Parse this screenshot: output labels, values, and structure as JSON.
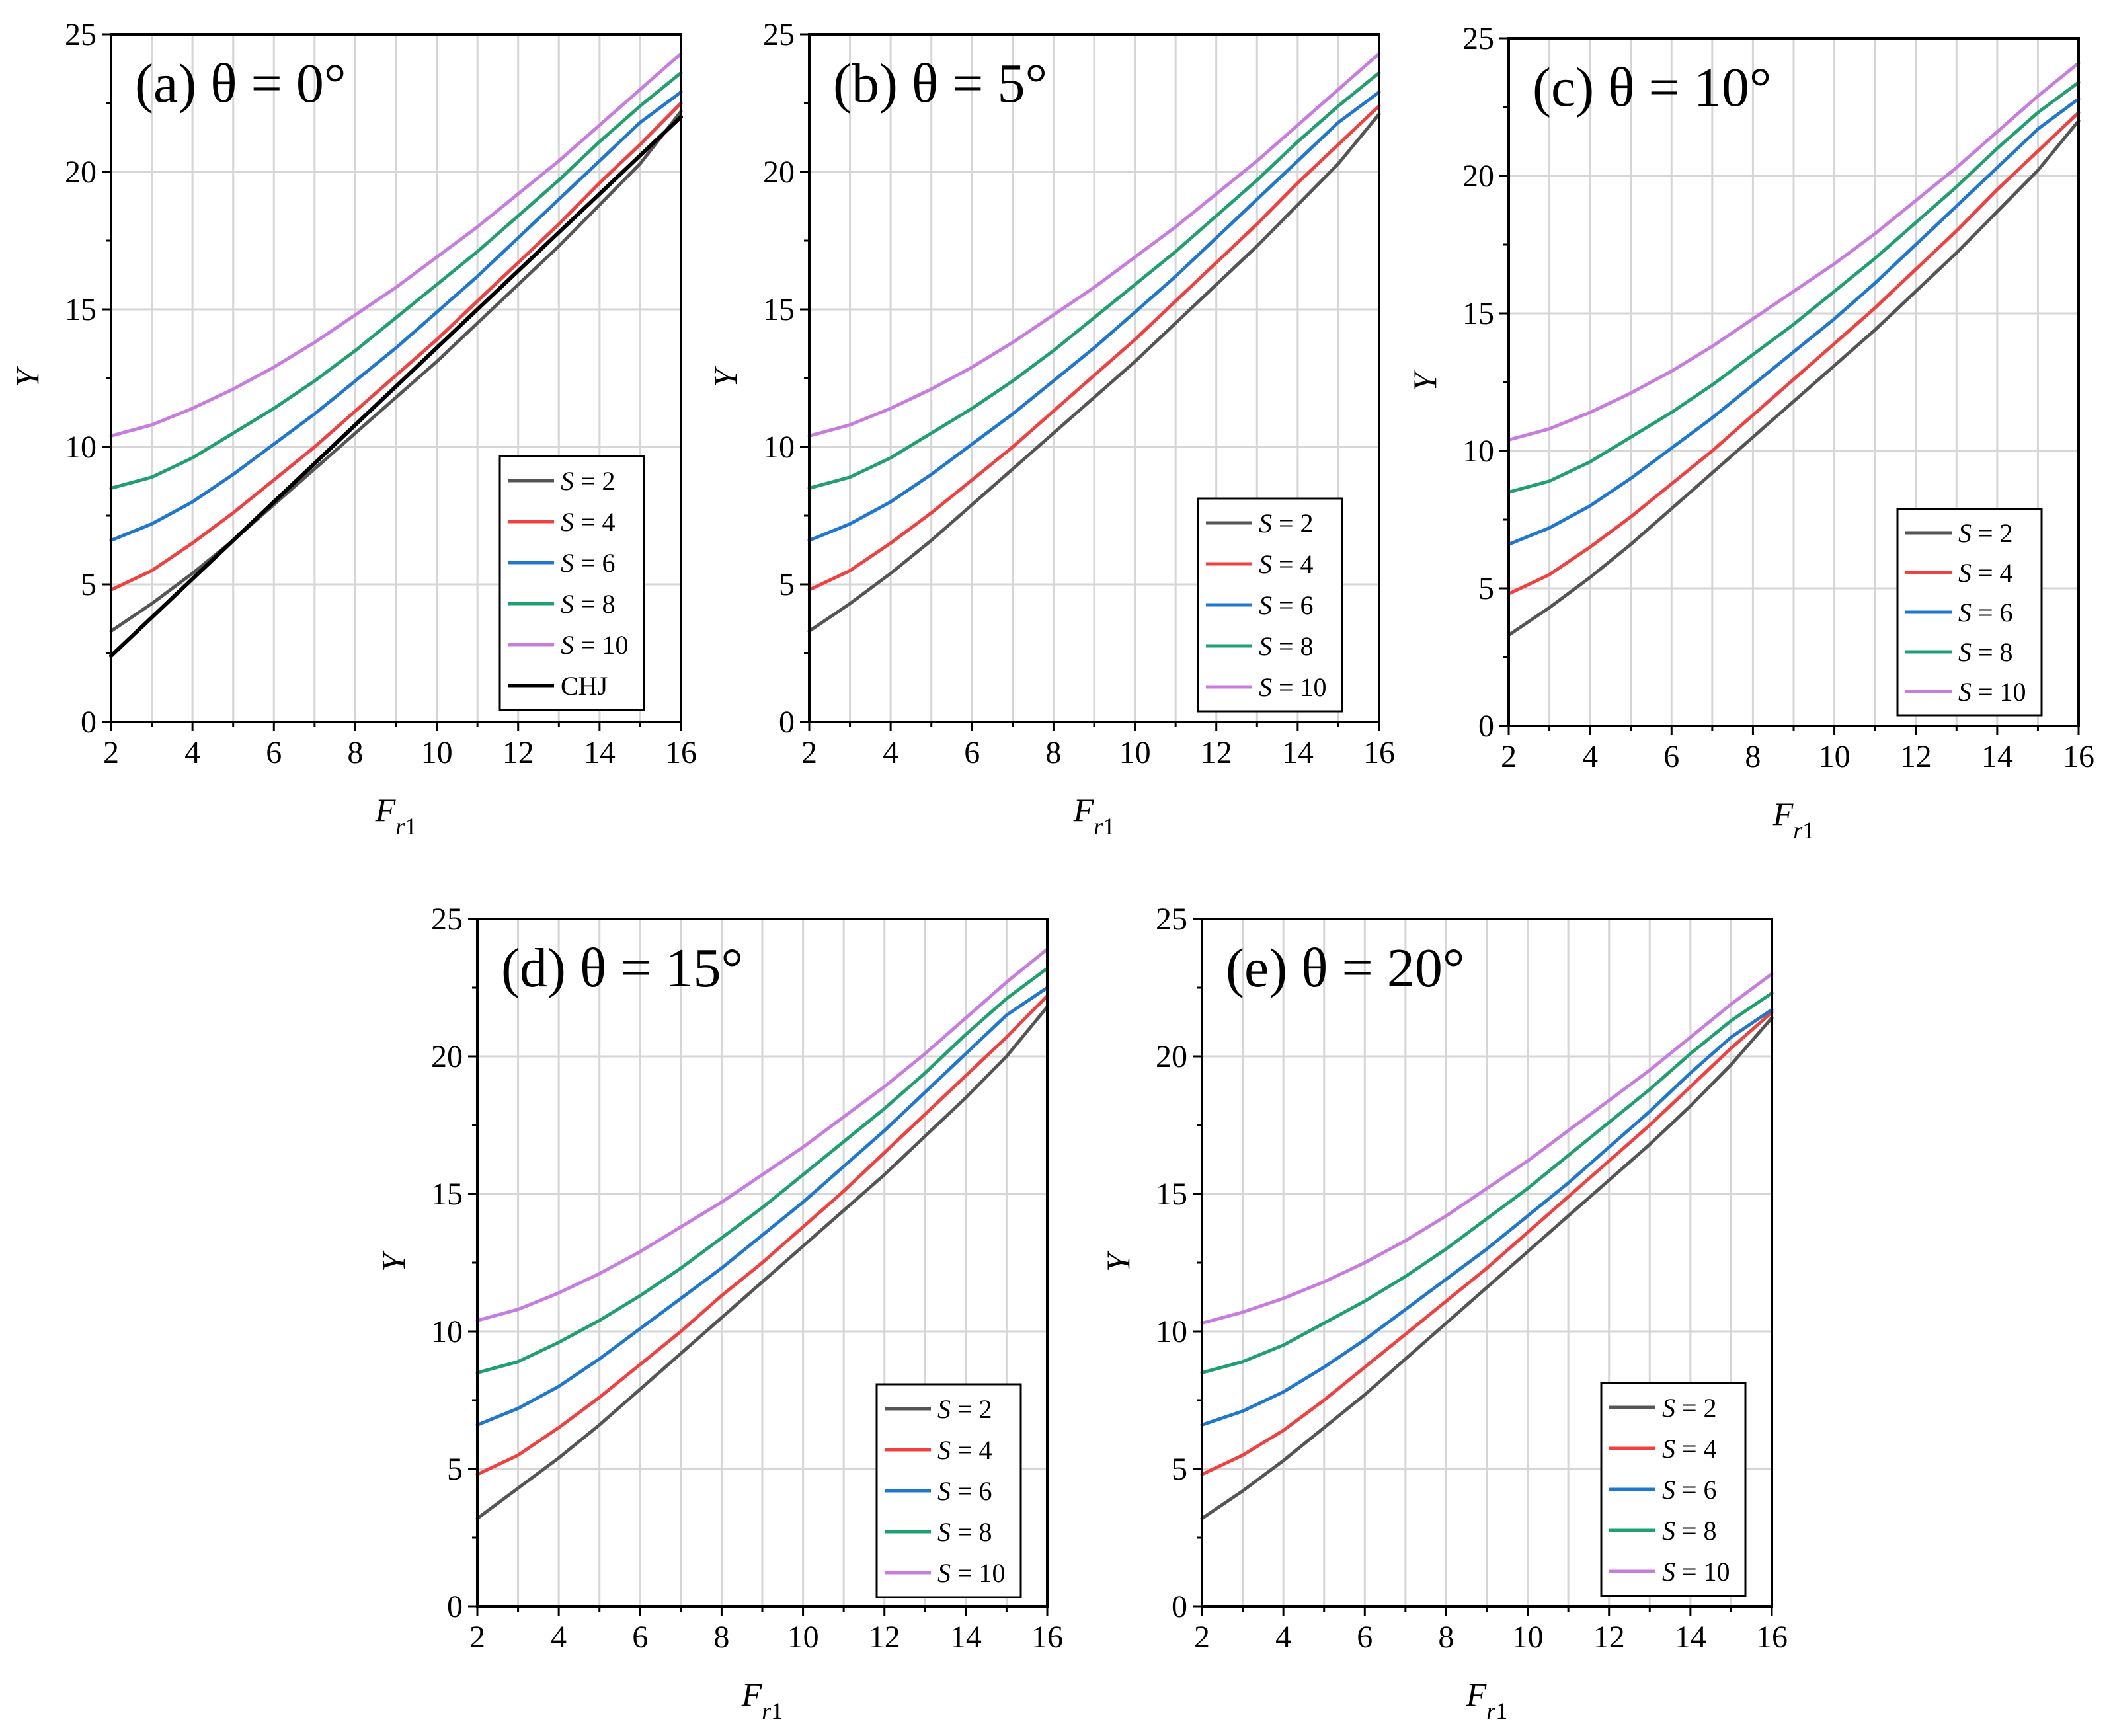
{
  "chart_data": [
    {
      "type": "line",
      "panel": "a",
      "title": "(a)  θ = 0°",
      "xlabel": "F_r1",
      "ylabel": "Y",
      "xlim": [
        2,
        16
      ],
      "ylim": [
        0,
        25
      ],
      "xticks": [
        2,
        4,
        6,
        8,
        10,
        12,
        14,
        16
      ],
      "yticks": [
        0,
        5,
        10,
        15,
        20,
        25
      ],
      "grid": true,
      "legend_position": "lower-right",
      "x": [
        2,
        3,
        4,
        5,
        6,
        7,
        8,
        9,
        10,
        11,
        12,
        13,
        14,
        15,
        16
      ],
      "series": [
        {
          "name": "S = 2",
          "color": "#555555",
          "values": [
            3.3,
            4.3,
            5.4,
            6.6,
            7.9,
            9.2,
            10.5,
            11.8,
            13.1,
            14.5,
            15.9,
            17.3,
            18.8,
            20.3,
            22.2
          ]
        },
        {
          "name": "S = 4",
          "color": "#f04040",
          "values": [
            4.8,
            5.5,
            6.5,
            7.6,
            8.8,
            10.0,
            11.3,
            12.6,
            13.9,
            15.3,
            16.7,
            18.1,
            19.6,
            21.0,
            22.5
          ]
        },
        {
          "name": "S = 6",
          "color": "#1f77d0",
          "values": [
            6.6,
            7.2,
            8.0,
            9.0,
            10.1,
            11.2,
            12.4,
            13.6,
            14.9,
            16.2,
            17.6,
            19.0,
            20.4,
            21.8,
            22.9
          ]
        },
        {
          "name": "S = 8",
          "color": "#20a070",
          "values": [
            8.5,
            8.9,
            9.6,
            10.5,
            11.4,
            12.4,
            13.5,
            14.7,
            15.9,
            17.1,
            18.4,
            19.7,
            21.1,
            22.4,
            23.6
          ]
        },
        {
          "name": "S = 10",
          "color": "#c77de0",
          "values": [
            10.4,
            10.8,
            11.4,
            12.1,
            12.9,
            13.8,
            14.8,
            15.8,
            16.9,
            18.0,
            19.2,
            20.4,
            21.7,
            23.0,
            24.3
          ]
        },
        {
          "name": "CHJ",
          "color": "#000000",
          "values": [
            2.4,
            3.8,
            5.2,
            6.6,
            8.0,
            9.4,
            10.8,
            12.2,
            13.6,
            15.0,
            16.4,
            17.8,
            19.2,
            20.6,
            22.0
          ]
        }
      ]
    },
    {
      "type": "line",
      "panel": "b",
      "title": "(b)  θ = 5°",
      "xlabel": "F_r1",
      "ylabel": "Y",
      "xlim": [
        2,
        16
      ],
      "ylim": [
        0,
        25
      ],
      "xticks": [
        2,
        4,
        6,
        8,
        10,
        12,
        14,
        16
      ],
      "yticks": [
        0,
        5,
        10,
        15,
        20,
        25
      ],
      "grid": true,
      "legend_position": "lower-right",
      "x": [
        2,
        3,
        4,
        5,
        6,
        7,
        8,
        9,
        10,
        11,
        12,
        13,
        14,
        15,
        16
      ],
      "series": [
        {
          "name": "S = 2",
          "color": "#555555",
          "values": [
            3.3,
            4.3,
            5.4,
            6.6,
            7.9,
            9.2,
            10.5,
            11.8,
            13.1,
            14.5,
            15.9,
            17.3,
            18.8,
            20.3,
            22.1
          ]
        },
        {
          "name": "S = 4",
          "color": "#f04040",
          "values": [
            4.8,
            5.5,
            6.5,
            7.6,
            8.8,
            10.0,
            11.3,
            12.6,
            13.9,
            15.3,
            16.7,
            18.1,
            19.6,
            21.0,
            22.4
          ]
        },
        {
          "name": "S = 6",
          "color": "#1f77d0",
          "values": [
            6.6,
            7.2,
            8.0,
            9.0,
            10.1,
            11.2,
            12.4,
            13.6,
            14.9,
            16.2,
            17.6,
            19.0,
            20.4,
            21.8,
            22.9
          ]
        },
        {
          "name": "S = 8",
          "color": "#20a070",
          "values": [
            8.5,
            8.9,
            9.6,
            10.5,
            11.4,
            12.4,
            13.5,
            14.7,
            15.9,
            17.1,
            18.4,
            19.7,
            21.1,
            22.4,
            23.6
          ]
        },
        {
          "name": "S = 10",
          "color": "#c77de0",
          "values": [
            10.4,
            10.8,
            11.4,
            12.1,
            12.9,
            13.8,
            14.8,
            15.8,
            16.9,
            18.0,
            19.2,
            20.4,
            21.7,
            23.0,
            24.3
          ]
        }
      ]
    },
    {
      "type": "line",
      "panel": "c",
      "title": "(c)  θ = 10°",
      "xlabel": "F_r1",
      "ylabel": "Y",
      "xlim": [
        2,
        16
      ],
      "ylim": [
        0,
        25
      ],
      "xticks": [
        2,
        4,
        6,
        8,
        10,
        12,
        14,
        16
      ],
      "yticks": [
        0,
        5,
        10,
        15,
        20,
        25
      ],
      "grid": true,
      "legend_position": "lower-right",
      "x": [
        2,
        3,
        4,
        5,
        6,
        7,
        8,
        9,
        10,
        11,
        12,
        13,
        14,
        15,
        16
      ],
      "series": [
        {
          "name": "S = 2",
          "color": "#555555",
          "values": [
            3.3,
            4.3,
            5.4,
            6.6,
            7.9,
            9.2,
            10.5,
            11.8,
            13.1,
            14.4,
            15.8,
            17.2,
            18.7,
            20.2,
            22.0
          ]
        },
        {
          "name": "S = 4",
          "color": "#f04040",
          "values": [
            4.8,
            5.5,
            6.5,
            7.6,
            8.8,
            10.0,
            11.3,
            12.6,
            13.9,
            15.2,
            16.6,
            18.0,
            19.5,
            20.9,
            22.3
          ]
        },
        {
          "name": "S = 6",
          "color": "#1f77d0",
          "values": [
            6.6,
            7.2,
            8.0,
            9.0,
            10.1,
            11.2,
            12.4,
            13.6,
            14.8,
            16.1,
            17.5,
            18.9,
            20.3,
            21.7,
            22.8
          ]
        },
        {
          "name": "S = 8",
          "color": "#20a070",
          "values": [
            8.5,
            8.9,
            9.6,
            10.5,
            11.4,
            12.4,
            13.5,
            14.6,
            15.8,
            17.0,
            18.3,
            19.6,
            21.0,
            22.3,
            23.4
          ]
        },
        {
          "name": "S = 10",
          "color": "#c77de0",
          "values": [
            10.4,
            10.8,
            11.4,
            12.1,
            12.9,
            13.8,
            14.8,
            15.8,
            16.8,
            17.9,
            19.1,
            20.3,
            21.6,
            22.9,
            24.1
          ]
        }
      ]
    },
    {
      "type": "line",
      "panel": "d",
      "title": "(d)  θ = 15°",
      "xlabel": "F_r1",
      "ylabel": "Y",
      "xlim": [
        2,
        16
      ],
      "ylim": [
        0,
        25
      ],
      "xticks": [
        2,
        4,
        6,
        8,
        10,
        12,
        14,
        16
      ],
      "yticks": [
        0,
        5,
        10,
        15,
        20,
        25
      ],
      "grid": true,
      "legend_position": "lower-right",
      "x": [
        2,
        3,
        4,
        5,
        6,
        7,
        8,
        9,
        10,
        11,
        12,
        13,
        14,
        15,
        16
      ],
      "series": [
        {
          "name": "S = 2",
          "color": "#555555",
          "values": [
            3.2,
            4.3,
            5.4,
            6.6,
            7.9,
            9.2,
            10.5,
            11.8,
            13.1,
            14.4,
            15.7,
            17.1,
            18.5,
            20.0,
            21.8
          ]
        },
        {
          "name": "S = 4",
          "color": "#f04040",
          "values": [
            4.8,
            5.5,
            6.5,
            7.6,
            8.8,
            10.0,
            11.3,
            12.5,
            13.8,
            15.1,
            16.5,
            17.9,
            19.3,
            20.7,
            22.2
          ]
        },
        {
          "name": "S = 6",
          "color": "#1f77d0",
          "values": [
            6.6,
            7.2,
            8.0,
            9.0,
            10.1,
            11.2,
            12.3,
            13.5,
            14.7,
            16.0,
            17.3,
            18.7,
            20.1,
            21.5,
            22.5
          ]
        },
        {
          "name": "S = 8",
          "color": "#20a070",
          "values": [
            8.5,
            8.9,
            9.6,
            10.4,
            11.3,
            12.3,
            13.4,
            14.5,
            15.7,
            16.9,
            18.1,
            19.4,
            20.8,
            22.1,
            23.2
          ]
        },
        {
          "name": "S = 10",
          "color": "#c77de0",
          "values": [
            10.4,
            10.8,
            11.4,
            12.1,
            12.9,
            13.8,
            14.7,
            15.7,
            16.7,
            17.8,
            18.9,
            20.1,
            21.4,
            22.7,
            23.9
          ]
        }
      ]
    },
    {
      "type": "line",
      "panel": "e",
      "title": "(e)  θ = 20°",
      "xlabel": "F_r1",
      "ylabel": "Y",
      "xlim": [
        2,
        16
      ],
      "ylim": [
        0,
        25
      ],
      "xticks": [
        2,
        4,
        6,
        8,
        10,
        12,
        14,
        16
      ],
      "yticks": [
        0,
        5,
        10,
        15,
        20,
        25
      ],
      "grid": true,
      "legend_position": "lower-right",
      "x": [
        2,
        3,
        4,
        5,
        6,
        7,
        8,
        9,
        10,
        11,
        12,
        13,
        14,
        15,
        16
      ],
      "series": [
        {
          "name": "S = 2",
          "color": "#555555",
          "values": [
            3.2,
            4.2,
            5.3,
            6.5,
            7.7,
            9.0,
            10.3,
            11.6,
            12.9,
            14.2,
            15.5,
            16.8,
            18.2,
            19.7,
            21.4
          ]
        },
        {
          "name": "S = 4",
          "color": "#f04040",
          "values": [
            4.8,
            5.5,
            6.4,
            7.5,
            8.7,
            9.9,
            11.1,
            12.3,
            13.6,
            14.9,
            16.2,
            17.5,
            18.9,
            20.3,
            21.6
          ]
        },
        {
          "name": "S = 6",
          "color": "#1f77d0",
          "values": [
            6.6,
            7.1,
            7.8,
            8.7,
            9.7,
            10.8,
            11.9,
            13.0,
            14.2,
            15.4,
            16.7,
            18.0,
            19.4,
            20.7,
            21.7
          ]
        },
        {
          "name": "S = 8",
          "color": "#20a070",
          "values": [
            8.5,
            8.9,
            9.5,
            10.3,
            11.1,
            12.0,
            13.0,
            14.1,
            15.2,
            16.4,
            17.6,
            18.8,
            20.1,
            21.3,
            22.3
          ]
        },
        {
          "name": "S = 10",
          "color": "#c77de0",
          "values": [
            10.3,
            10.7,
            11.2,
            11.8,
            12.5,
            13.3,
            14.2,
            15.2,
            16.2,
            17.3,
            18.4,
            19.5,
            20.7,
            21.9,
            23.0
          ]
        }
      ]
    }
  ]
}
